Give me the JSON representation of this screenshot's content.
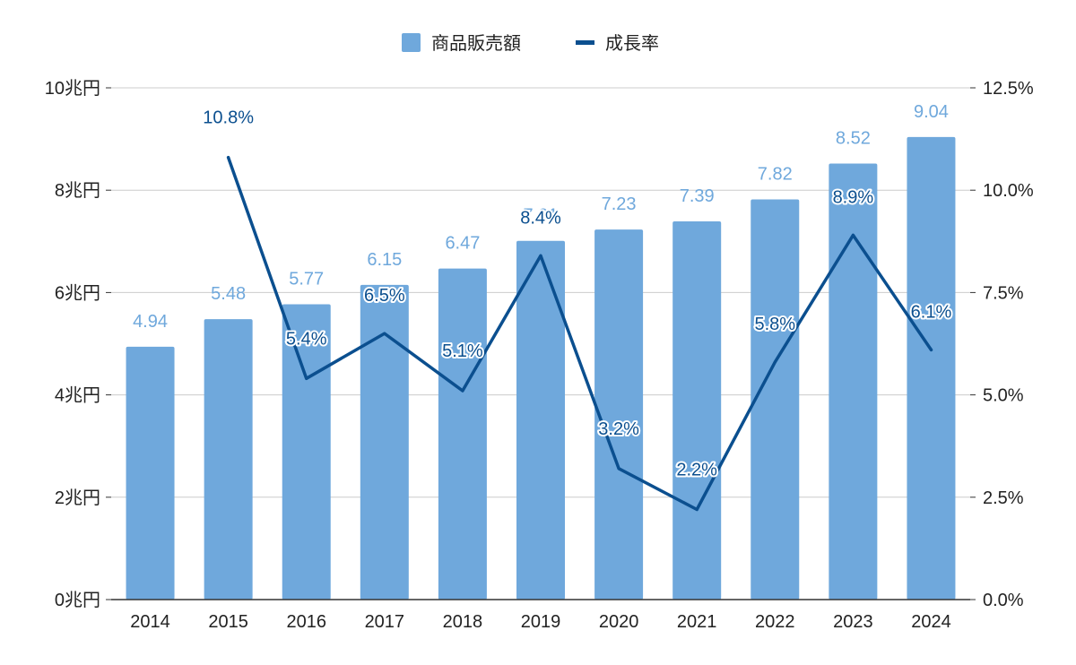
{
  "chart_data": {
    "type": "bar",
    "categories": [
      "2014",
      "2015",
      "2016",
      "2017",
      "2018",
      "2019",
      "2020",
      "2021",
      "2022",
      "2023",
      "2024"
    ],
    "series": [
      {
        "name": "商品販売額",
        "type": "bar",
        "axis": "left",
        "color": "#6fa8dc",
        "values": [
          4.94,
          5.48,
          5.77,
          6.15,
          6.47,
          7.01,
          7.23,
          7.39,
          7.82,
          8.52,
          9.04
        ],
        "labels": [
          "4.94",
          "5.48",
          "5.77",
          "6.15",
          "6.47",
          "7.01",
          "7.23",
          "7.39",
          "7.82",
          "8.52",
          "9.04"
        ]
      },
      {
        "name": "成長率",
        "type": "line",
        "axis": "right",
        "color": "#0b4f8f",
        "values": [
          null,
          10.8,
          5.4,
          6.5,
          5.1,
          8.4,
          3.2,
          2.2,
          5.8,
          8.9,
          6.1
        ],
        "labels": [
          "",
          "10.8%",
          "5.4%",
          "6.5%",
          "5.1%",
          "8.4%",
          "3.2%",
          "2.2%",
          "5.8%",
          "8.9%",
          "6.1%"
        ]
      }
    ],
    "y_left": {
      "ylim": [
        0,
        10
      ],
      "ticks": [
        0,
        2,
        4,
        6,
        8,
        10
      ],
      "tick_labels": [
        "0兆円",
        "2兆円",
        "4兆円",
        "6兆円",
        "8兆円",
        "10兆円"
      ]
    },
    "y_right": {
      "ylim": [
        0,
        12.5
      ],
      "ticks": [
        0,
        2.5,
        5,
        7.5,
        10,
        12.5
      ],
      "tick_labels": [
        "0.0%",
        "2.5%",
        "5.0%",
        "7.5%",
        "10.0%",
        "12.5%"
      ]
    },
    "title": "",
    "xlabel": "",
    "grid": true,
    "legend_position": "top-center"
  }
}
